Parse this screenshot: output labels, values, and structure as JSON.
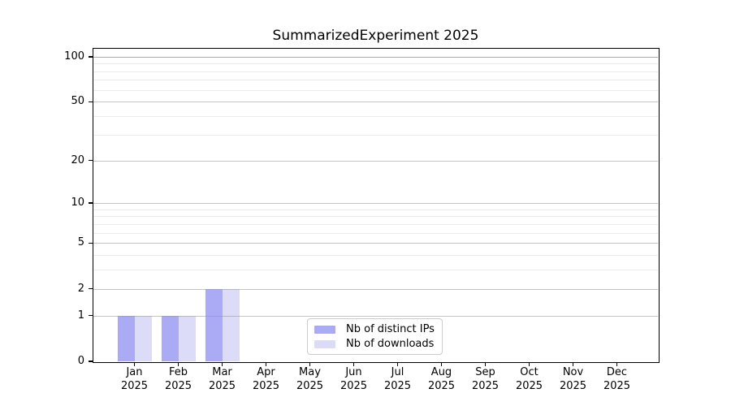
{
  "title": "SummarizedExperiment 2025",
  "chart_data": {
    "type": "bar",
    "title": "SummarizedExperiment 2025",
    "xlabel": "",
    "ylabel": "",
    "categories": [
      "Jan 2025",
      "Feb 2025",
      "Mar 2025",
      "Apr 2025",
      "May 2025",
      "Jun 2025",
      "Jul 2025",
      "Aug 2025",
      "Sep 2025",
      "Oct 2025",
      "Nov 2025",
      "Dec 2025"
    ],
    "series": [
      {
        "name": "Nb of distinct IPs",
        "color": "#aaaaf5",
        "values": [
          1,
          1,
          2,
          0,
          0,
          0,
          0,
          0,
          0,
          0,
          0,
          0
        ]
      },
      {
        "name": "Nb of downloads",
        "color": "#dcdcf8",
        "values": [
          1,
          1,
          2,
          0,
          0,
          0,
          0,
          0,
          0,
          0,
          0,
          0
        ]
      }
    ],
    "yscale": "log1p",
    "yticks": [
      0,
      1,
      2,
      5,
      10,
      20,
      50,
      100
    ],
    "yticks_minor": [
      3,
      4,
      6,
      7,
      8,
      9,
      30,
      40,
      60,
      70,
      80,
      90
    ],
    "ylim": [
      0,
      113
    ],
    "grid": true,
    "grid_above_bars": true,
    "legend_position": "lower center",
    "colors": {
      "major_grid": "rgba(150,150,150,0.55)",
      "minor_grid": "rgba(210,210,210,0.45)",
      "top_grid": "rgba(120,120,120,0.62)",
      "axis": "#000000",
      "background": "#ffffff",
      "legend_border": "#cccccc"
    }
  }
}
